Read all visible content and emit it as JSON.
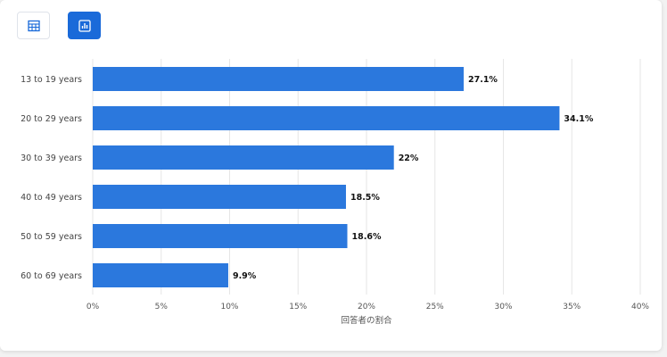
{
  "toolbar": {
    "buttons": [
      {
        "icon": "table-icon",
        "active": false
      },
      {
        "icon": "bar-chart-icon",
        "active": true
      }
    ]
  },
  "colors": {
    "bar": "#2b78dd",
    "active_button": "#1a6ad9",
    "grid": "#e6e6e6"
  },
  "chart_data": {
    "type": "bar",
    "orientation": "horizontal",
    "categories": [
      "13 to 19 years",
      "20 to 29 years",
      "30 to 39 years",
      "40 to 49 years",
      "50 to 59 years",
      "60 to 69 years"
    ],
    "values": [
      27.1,
      34.1,
      22,
      18.5,
      18.6,
      9.9
    ],
    "value_labels": [
      "27.1%",
      "34.1%",
      "22%",
      "18.5%",
      "18.6%",
      "9.9%"
    ],
    "xlim": [
      0,
      40
    ],
    "xticks": [
      0,
      5,
      10,
      15,
      20,
      25,
      30,
      35,
      40
    ],
    "xtick_labels": [
      "0%",
      "5%",
      "10%",
      "15%",
      "20%",
      "25%",
      "30%",
      "35%",
      "40%"
    ],
    "xlabel": "回答者の割合",
    "ylabel": "",
    "grid": true,
    "legend": false
  }
}
